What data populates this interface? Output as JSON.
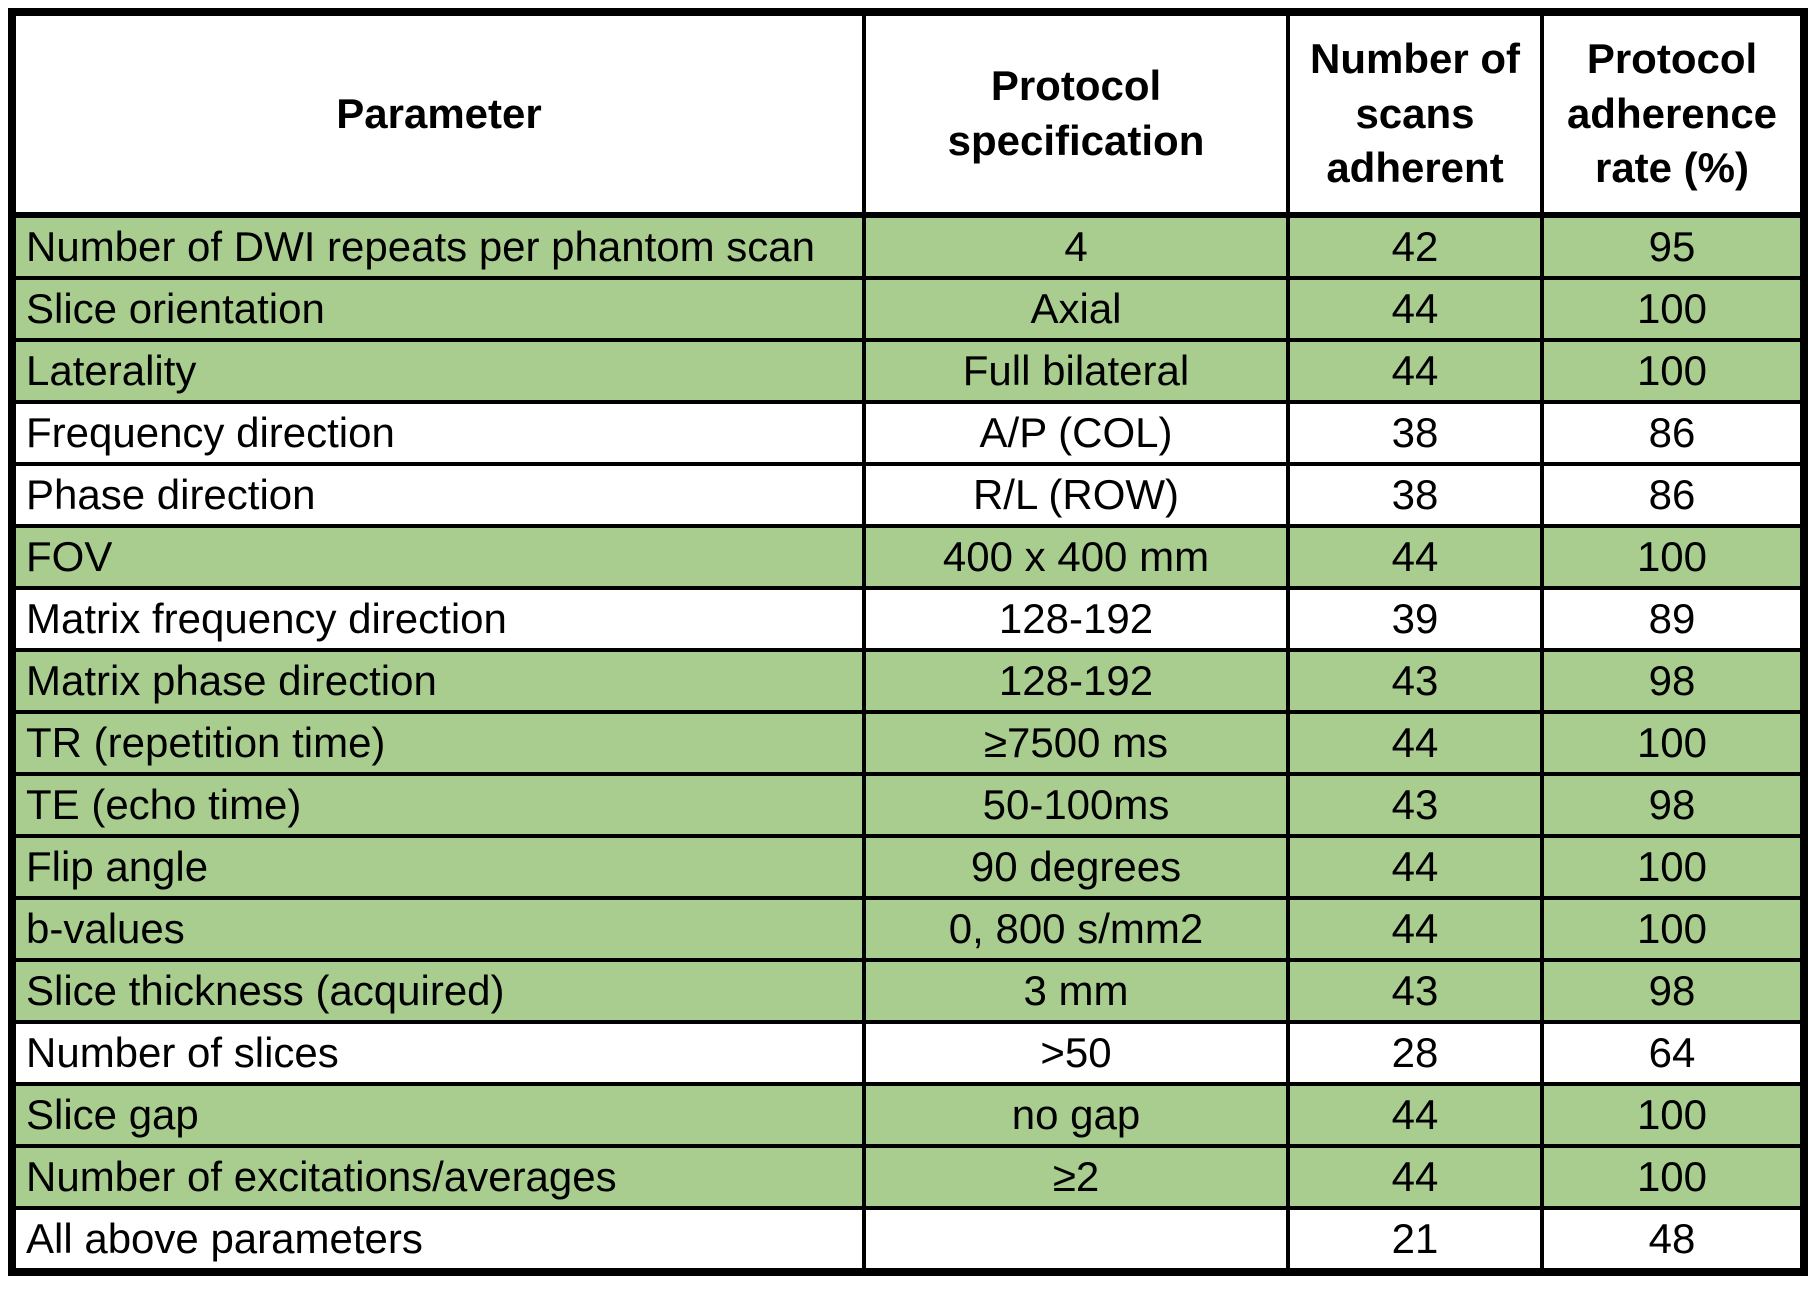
{
  "chart_data": {
    "type": "table",
    "columns": [
      "Parameter",
      "Protocol specification",
      "Number of scans adherent",
      "Protocol adherence rate (%)"
    ],
    "rows": [
      {
        "parameter": "Number of DWI repeats per phantom scan",
        "spec": "4",
        "scans": "42",
        "rate": "95",
        "highlight": true
      },
      {
        "parameter": "Slice orientation",
        "spec": "Axial",
        "scans": "44",
        "rate": "100",
        "highlight": true
      },
      {
        "parameter": "Laterality",
        "spec": "Full bilateral",
        "scans": "44",
        "rate": "100",
        "highlight": true
      },
      {
        "parameter": "Frequency direction",
        "spec": "A/P (COL)",
        "scans": "38",
        "rate": "86",
        "highlight": false
      },
      {
        "parameter": "Phase direction",
        "spec": "R/L (ROW)",
        "scans": "38",
        "rate": "86",
        "highlight": false
      },
      {
        "parameter": "FOV",
        "spec": "400 x 400 mm",
        "scans": "44",
        "rate": "100",
        "highlight": true
      },
      {
        "parameter": "Matrix frequency direction",
        "spec": "128-192",
        "scans": "39",
        "rate": "89",
        "highlight": false
      },
      {
        "parameter": "Matrix phase direction",
        "spec": "128-192",
        "scans": "43",
        "rate": "98",
        "highlight": true
      },
      {
        "parameter": "TR (repetition time)",
        "spec": "≥7500 ms",
        "scans": "44",
        "rate": "100",
        "highlight": true
      },
      {
        "parameter": "TE (echo time)",
        "spec": "50-100ms",
        "scans": "43",
        "rate": "98",
        "highlight": true
      },
      {
        "parameter": "Flip angle",
        "spec": "90 degrees",
        "scans": "44",
        "rate": "100",
        "highlight": true
      },
      {
        "parameter": "b-values",
        "spec": "0, 800 s/mm2",
        "scans": "44",
        "rate": "100",
        "highlight": true
      },
      {
        "parameter": "Slice thickness (acquired)",
        "spec": "3 mm",
        "scans": "43",
        "rate": "98",
        "highlight": true
      },
      {
        "parameter": "Number of slices",
        "spec": ">50",
        "scans": "28",
        "rate": "64",
        "highlight": false
      },
      {
        "parameter": "Slice gap",
        "spec": "no gap",
        "scans": "44",
        "rate": "100",
        "highlight": true
      },
      {
        "parameter": "Number of excitations/averages",
        "spec": "≥2",
        "scans": "44",
        "rate": "100",
        "highlight": true
      },
      {
        "parameter": "All above parameters",
        "spec": "",
        "scans": "21",
        "rate": "48",
        "highlight": false
      }
    ],
    "colors": {
      "highlight_fill": "#a9cd8e",
      "plain_fill": "#ffffff",
      "border": "#000000",
      "text": "#000000"
    },
    "layout": {
      "grid": "on",
      "header_background": "#ffffff",
      "first_column_align": "left",
      "other_columns_align": "center"
    }
  }
}
